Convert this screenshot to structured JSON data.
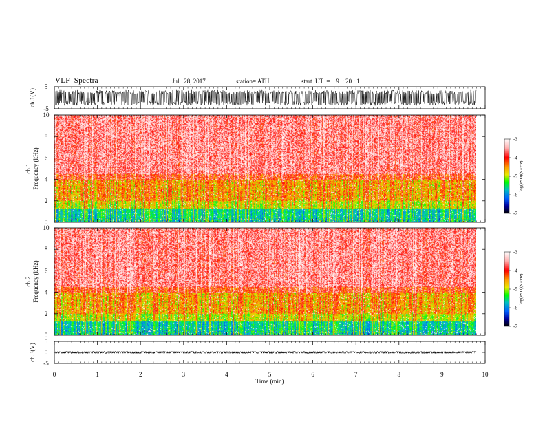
{
  "header": {
    "title": "VLF  Spectra",
    "date": "Jul.  28, 2017",
    "station": "station= ATH",
    "start": "start  UT  =    9  : 20 : 1"
  },
  "chart_data": [
    {
      "type": "line",
      "name": "ch1-waveform",
      "ylabel": "ch.1(V)",
      "ylim": [
        -5,
        5
      ],
      "yticks": [
        5,
        -5
      ],
      "xlim": [
        0,
        10
      ],
      "data_span_min": 9.8,
      "amplitude_typical_V": 2.5,
      "series_color": "#000000"
    },
    {
      "type": "heatmap",
      "name": "ch1-spectrogram",
      "ylabel": "ch.1\nFrequency  (kHz)",
      "ylim": [
        0,
        10
      ],
      "yticks": [
        0,
        2,
        4,
        6,
        8,
        10
      ],
      "xlim": [
        0,
        10
      ],
      "colorbar": {
        "label": "log(PSD)(V²/Hz)",
        "min": -7,
        "max": -3,
        "ticks": [
          -3,
          -4,
          -5,
          -6,
          -7
        ]
      }
    },
    {
      "type": "heatmap",
      "name": "ch2-spectrogram",
      "ylabel": "ch.2\nFrequency  (kHz)",
      "ylim": [
        0,
        10
      ],
      "yticks": [
        0,
        2,
        4,
        6,
        8,
        10
      ],
      "xlim": [
        0,
        10
      ],
      "colorbar": {
        "label": "log(PSD)(V²/Hz)",
        "min": -7,
        "max": -3,
        "ticks": [
          -3,
          -4,
          -5,
          -6,
          -7
        ]
      }
    },
    {
      "type": "line",
      "name": "ch3-waveform",
      "ylabel": "ch.3(V)",
      "ylim": [
        -5,
        5
      ],
      "yticks": [
        5,
        0,
        -5
      ],
      "xlim": [
        0,
        10
      ],
      "data_span_min": 9.8,
      "amplitude_typical_V": 0.3,
      "series_color": "#000000"
    }
  ],
  "x_axis": {
    "label": "Time  (min)",
    "ticks": [
      "0",
      "1",
      "2",
      "3",
      "4",
      "5",
      "6",
      "7",
      "8",
      "9",
      "10"
    ]
  }
}
